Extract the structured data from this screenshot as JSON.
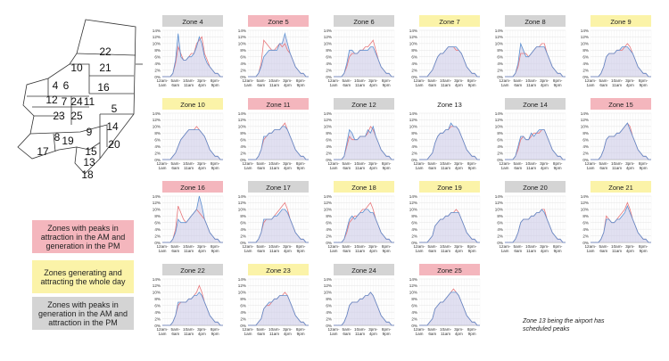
{
  "legend": {
    "red": "Zones with peaks in attraction in the AM and generation in the PM",
    "yellow": "Zones generating and attracting the whole day",
    "gray": "Zones with peaks in generation in the AM and attraction in the PM"
  },
  "note": "Zone 13 being the airport has scheduled peaks",
  "colors": {
    "red": "#f4b6bd",
    "yellow": "#fbf3a8",
    "gray": "#d4d4d4",
    "attraction_line": "#e8767a",
    "generation_line": "#5b8fd0",
    "fill": "#c8c6e6"
  },
  "map": {
    "zones": [
      "22",
      "10",
      "21",
      "4",
      "6",
      "16",
      "12",
      "7",
      "24",
      "11",
      "5",
      "23",
      "25",
      "8",
      "9",
      "14",
      "19",
      "20",
      "17",
      "15",
      "13",
      "18"
    ]
  },
  "chart_data": {
    "type": "area",
    "y_tick_labels": [
      "0%",
      "2%",
      "4%",
      "6%",
      "8%",
      "10%",
      "12%",
      "14%"
    ],
    "ylim": [
      0,
      14
    ],
    "x_tick_labels": [
      "12am-1am",
      "5am-6am",
      "10am-11am",
      "3pm-4pm",
      "8pm-9pm"
    ],
    "charts": [
      {
        "zone": "Zone 4",
        "color": "gray",
        "a": [
          0,
          0,
          0,
          0,
          1,
          4,
          9,
          7,
          5,
          5,
          6,
          7,
          7,
          10,
          11,
          12,
          7,
          5,
          3,
          2,
          1,
          1,
          0,
          0
        ],
        "g": [
          0,
          0,
          0,
          0,
          1,
          5,
          13,
          6,
          5,
          5,
          6,
          6,
          7,
          9,
          12,
          10,
          6,
          4,
          3,
          2,
          1,
          1,
          0,
          0
        ]
      },
      {
        "zone": "Zone 5",
        "color": "red",
        "a": [
          0,
          0,
          0,
          0,
          1,
          4,
          11,
          10,
          9,
          8,
          8,
          9,
          10,
          9,
          10,
          8,
          7,
          5,
          3,
          2,
          1,
          1,
          0,
          0
        ],
        "g": [
          0,
          0,
          0,
          0,
          1,
          3,
          6,
          7,
          8,
          8,
          8,
          8,
          10,
          10,
          13,
          10,
          7,
          5,
          3,
          2,
          1,
          1,
          0,
          0
        ]
      },
      {
        "zone": "Zone 6",
        "color": "gray",
        "a": [
          0,
          0,
          0,
          0,
          1,
          3,
          6,
          7,
          7,
          7,
          8,
          8,
          9,
          9,
          10,
          11,
          8,
          5,
          3,
          2,
          1,
          1,
          0,
          0
        ],
        "g": [
          0,
          0,
          0,
          0,
          1,
          4,
          8,
          8,
          7,
          7,
          8,
          8,
          8,
          8,
          9,
          9,
          7,
          5,
          3,
          2,
          1,
          1,
          0,
          0
        ]
      },
      {
        "zone": "Zone 7",
        "color": "yellow",
        "a": [
          0,
          0,
          0,
          0,
          1,
          2,
          4,
          6,
          7,
          7,
          8,
          9,
          9,
          9,
          8,
          8,
          7,
          5,
          3,
          2,
          1,
          1,
          0,
          0
        ],
        "g": [
          0,
          0,
          0,
          0,
          1,
          2,
          4,
          6,
          7,
          7,
          8,
          9,
          9,
          9,
          9,
          8,
          7,
          5,
          3,
          2,
          1,
          1,
          0,
          0
        ]
      },
      {
        "zone": "Zone 8",
        "color": "gray",
        "a": [
          0,
          0,
          0,
          0,
          1,
          3,
          7,
          7,
          7,
          6,
          7,
          8,
          9,
          9,
          10,
          10,
          7,
          5,
          3,
          2,
          1,
          1,
          0,
          0
        ],
        "g": [
          0,
          0,
          0,
          0,
          1,
          4,
          10,
          8,
          6,
          6,
          7,
          8,
          9,
          9,
          9,
          9,
          7,
          5,
          3,
          2,
          1,
          1,
          0,
          0
        ]
      },
      {
        "zone": "Zone 9",
        "color": "yellow",
        "a": [
          0,
          0,
          0,
          0,
          1,
          3,
          6,
          7,
          7,
          7,
          8,
          8,
          8,
          9,
          10,
          9,
          7,
          5,
          3,
          2,
          1,
          1,
          0,
          0
        ],
        "g": [
          0,
          0,
          0,
          0,
          1,
          3,
          6,
          7,
          7,
          7,
          8,
          8,
          9,
          9,
          9,
          8,
          7,
          5,
          3,
          2,
          1,
          1,
          0,
          0
        ]
      },
      {
        "zone": "Zone 10",
        "color": "yellow",
        "a": [
          0,
          0,
          0,
          0,
          1,
          2,
          4,
          6,
          7,
          8,
          9,
          9,
          9,
          10,
          9,
          8,
          7,
          5,
          3,
          2,
          1,
          1,
          0,
          0
        ],
        "g": [
          0,
          0,
          0,
          0,
          1,
          2,
          4,
          6,
          7,
          8,
          9,
          9,
          9,
          9,
          9,
          8,
          7,
          5,
          3,
          2,
          1,
          1,
          0,
          0
        ]
      },
      {
        "zone": "Zone 11",
        "color": "red",
        "a": [
          0,
          0,
          0,
          0,
          1,
          3,
          6,
          7,
          8,
          8,
          9,
          9,
          9,
          10,
          11,
          9,
          7,
          5,
          3,
          2,
          1,
          1,
          0,
          0
        ],
        "g": [
          0,
          0,
          0,
          0,
          1,
          3,
          7,
          7,
          8,
          8,
          9,
          9,
          9,
          10,
          10,
          9,
          7,
          5,
          3,
          2,
          1,
          1,
          0,
          0
        ]
      },
      {
        "zone": "Zone 12",
        "color": "gray",
        "a": [
          0,
          0,
          0,
          0,
          1,
          4,
          7,
          6,
          6,
          6,
          7,
          7,
          7,
          8,
          10,
          9,
          7,
          5,
          3,
          2,
          1,
          1,
          0,
          0
        ],
        "g": [
          0,
          0,
          0,
          0,
          1,
          5,
          9,
          8,
          6,
          6,
          7,
          7,
          7,
          9,
          8,
          10,
          7,
          5,
          3,
          2,
          1,
          1,
          0,
          0
        ]
      },
      {
        "zone": "Zone 13",
        "color": "none",
        "a": [
          0,
          0,
          0,
          0,
          1,
          2,
          5,
          7,
          8,
          8,
          9,
          9,
          10,
          10,
          10,
          9,
          7,
          5,
          3,
          2,
          1,
          1,
          0,
          0
        ],
        "g": [
          0,
          0,
          0,
          0,
          1,
          2,
          5,
          7,
          8,
          8,
          9,
          9,
          11,
          10,
          10,
          9,
          7,
          5,
          3,
          2,
          1,
          1,
          0,
          0
        ]
      },
      {
        "zone": "Zone 14",
        "color": "gray",
        "a": [
          0,
          0,
          0,
          0,
          1,
          3,
          6,
          7,
          6,
          6,
          7,
          8,
          8,
          8,
          9,
          9,
          7,
          5,
          3,
          2,
          1,
          1,
          0,
          0
        ],
        "g": [
          0,
          0,
          0,
          0,
          1,
          4,
          7,
          7,
          6,
          6,
          8,
          7,
          8,
          9,
          9,
          9,
          7,
          5,
          3,
          2,
          1,
          1,
          0,
          0
        ]
      },
      {
        "zone": "Zone 15",
        "color": "red",
        "a": [
          0,
          0,
          0,
          0,
          1,
          3,
          6,
          7,
          7,
          7,
          8,
          8,
          9,
          10,
          11,
          10,
          7,
          5,
          3,
          2,
          1,
          1,
          0,
          0
        ],
        "g": [
          0,
          0,
          0,
          0,
          1,
          3,
          6,
          7,
          7,
          7,
          8,
          8,
          9,
          10,
          11,
          9,
          7,
          5,
          3,
          2,
          1,
          1,
          0,
          0
        ]
      },
      {
        "zone": "Zone 16",
        "color": "red",
        "a": [
          0,
          0,
          0,
          0,
          1,
          4,
          11,
          9,
          7,
          6,
          7,
          8,
          9,
          10,
          9,
          8,
          7,
          5,
          3,
          2,
          1,
          1,
          0,
          0
        ],
        "g": [
          0,
          0,
          0,
          0,
          1,
          3,
          7,
          6,
          6,
          6,
          7,
          8,
          9,
          10,
          14,
          11,
          7,
          5,
          3,
          2,
          1,
          1,
          0,
          0
        ]
      },
      {
        "zone": "Zone 17",
        "color": "gray",
        "a": [
          0,
          0,
          0,
          0,
          1,
          3,
          6,
          7,
          7,
          7,
          8,
          9,
          10,
          11,
          12,
          10,
          7,
          5,
          3,
          2,
          1,
          1,
          0,
          0
        ],
        "g": [
          0,
          0,
          0,
          0,
          1,
          3,
          7,
          7,
          7,
          7,
          8,
          8,
          9,
          10,
          10,
          9,
          7,
          5,
          3,
          2,
          1,
          1,
          0,
          0
        ]
      },
      {
        "zone": "Zone 18",
        "color": "yellow",
        "a": [
          0,
          0,
          0,
          0,
          1,
          3,
          6,
          7,
          8,
          8,
          9,
          10,
          10,
          11,
          12,
          10,
          7,
          5,
          3,
          2,
          1,
          1,
          0,
          0
        ],
        "g": [
          0,
          0,
          0,
          0,
          1,
          4,
          7,
          8,
          7,
          8,
          9,
          9,
          10,
          10,
          9,
          9,
          7,
          5,
          3,
          2,
          1,
          1,
          0,
          0
        ]
      },
      {
        "zone": "Zone 19",
        "color": "yellow",
        "a": [
          0,
          0,
          0,
          0,
          1,
          2,
          5,
          6,
          7,
          7,
          8,
          8,
          9,
          9,
          10,
          9,
          7,
          5,
          3,
          2,
          1,
          1,
          0,
          0
        ],
        "g": [
          0,
          0,
          0,
          0,
          1,
          2,
          5,
          6,
          7,
          7,
          8,
          8,
          9,
          9,
          9,
          9,
          7,
          5,
          3,
          2,
          1,
          1,
          0,
          0
        ]
      },
      {
        "zone": "Zone 20",
        "color": "gray",
        "a": [
          0,
          0,
          0,
          0,
          1,
          3,
          6,
          7,
          7,
          7,
          8,
          8,
          9,
          9,
          10,
          10,
          7,
          5,
          3,
          2,
          1,
          1,
          0,
          0
        ],
        "g": [
          0,
          0,
          0,
          0,
          1,
          3,
          6,
          7,
          7,
          7,
          8,
          8,
          9,
          9,
          10,
          9,
          7,
          5,
          3,
          2,
          1,
          1,
          0,
          0
        ]
      },
      {
        "zone": "Zone 21",
        "color": "yellow",
        "a": [
          0,
          0,
          0,
          0,
          1,
          3,
          8,
          7,
          6,
          6,
          7,
          8,
          9,
          10,
          12,
          10,
          7,
          5,
          3,
          2,
          1,
          1,
          0,
          0
        ],
        "g": [
          0,
          0,
          0,
          0,
          1,
          3,
          7,
          7,
          6,
          6,
          7,
          7,
          8,
          9,
          11,
          9,
          7,
          5,
          3,
          2,
          1,
          1,
          0,
          0
        ]
      },
      {
        "zone": "Zone 22",
        "color": "gray",
        "a": [
          0,
          0,
          0,
          0,
          1,
          3,
          6,
          7,
          7,
          7,
          8,
          8,
          9,
          10,
          12,
          10,
          7,
          5,
          3,
          2,
          1,
          1,
          0,
          0
        ],
        "g": [
          0,
          0,
          0,
          0,
          1,
          3,
          7,
          7,
          7,
          7,
          8,
          8,
          9,
          9,
          10,
          9,
          7,
          5,
          3,
          2,
          1,
          1,
          0,
          0
        ]
      },
      {
        "zone": "Zone 23",
        "color": "yellow",
        "a": [
          0,
          0,
          0,
          0,
          1,
          2,
          5,
          6,
          6,
          7,
          8,
          8,
          9,
          9,
          10,
          9,
          7,
          5,
          3,
          2,
          1,
          1,
          0,
          0
        ],
        "g": [
          0,
          0,
          0,
          0,
          1,
          2,
          5,
          6,
          7,
          7,
          8,
          8,
          9,
          9,
          9,
          9,
          7,
          5,
          3,
          2,
          1,
          1,
          0,
          0
        ]
      },
      {
        "zone": "Zone 24",
        "color": "gray",
        "a": [
          0,
          0,
          0,
          0,
          1,
          3,
          6,
          7,
          7,
          7,
          8,
          8,
          9,
          9,
          10,
          9,
          7,
          5,
          3,
          2,
          1,
          1,
          0,
          0
        ],
        "g": [
          0,
          0,
          0,
          0,
          1,
          3,
          6,
          7,
          7,
          7,
          8,
          8,
          9,
          9,
          10,
          9,
          7,
          5,
          3,
          2,
          1,
          1,
          0,
          0
        ]
      },
      {
        "zone": "Zone 25",
        "color": "red",
        "a": [
          0,
          0,
          0,
          0,
          1,
          2,
          5,
          6,
          7,
          7,
          8,
          9,
          10,
          11,
          10,
          9,
          7,
          5,
          3,
          2,
          1,
          1,
          0,
          0
        ],
        "g": [
          0,
          0,
          0,
          0,
          1,
          2,
          5,
          6,
          7,
          7,
          8,
          9,
          10,
          10,
          10,
          9,
          7,
          5,
          3,
          2,
          1,
          1,
          0,
          0
        ]
      }
    ]
  }
}
